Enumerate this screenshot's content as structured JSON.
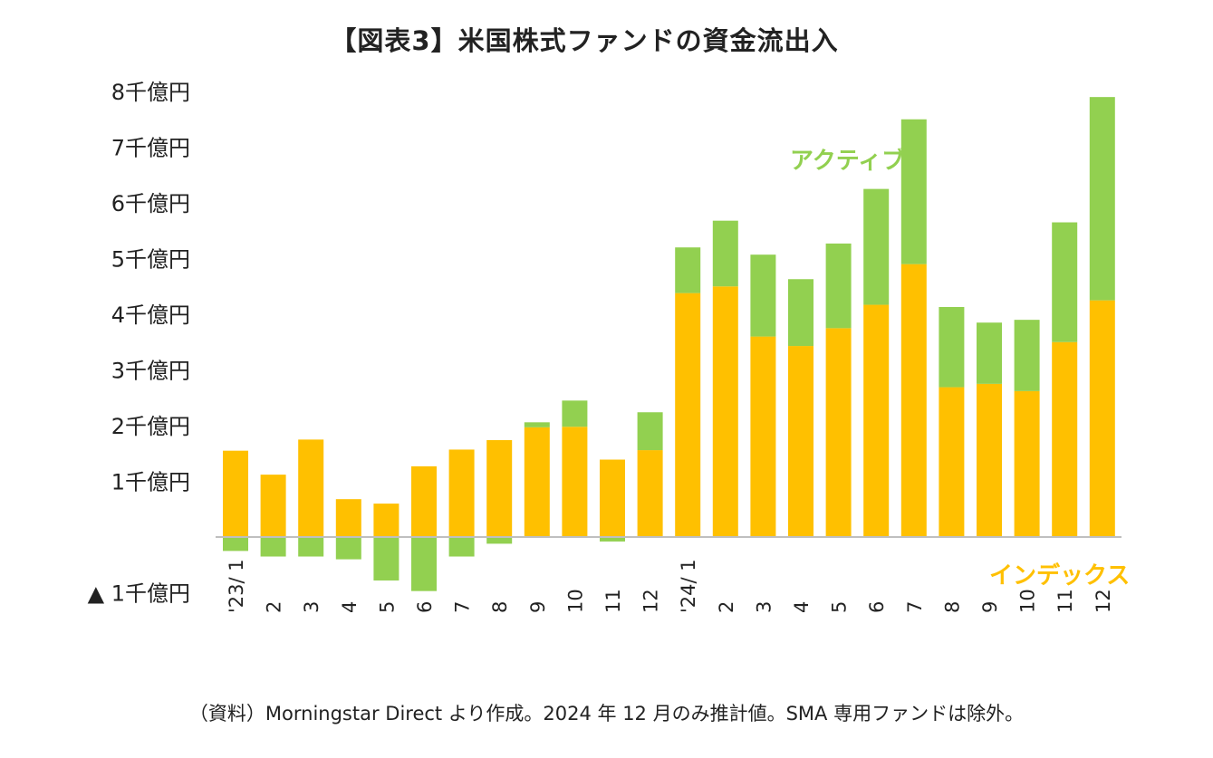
{
  "page": {
    "title": "【図表3】米国株式ファンドの資金流出入"
  },
  "source": "（資料）Morningstar Direct より作成。2024 年 12 月のみ推計値。SMA 専用ファンドは除外。",
  "colors": {
    "index": "#FFC000",
    "active": "#92D050",
    "axis": "#bfbfbf",
    "text": "#222222"
  },
  "chart_data": {
    "type": "bar",
    "stacked": true,
    "title": "【図表3】米国株式ファンドの資金流出入",
    "unit": "千億円",
    "ylim": [
      -1,
      8
    ],
    "y_ticks": [
      {
        "value": 8,
        "label": "8千億円"
      },
      {
        "value": 7,
        "label": "7千億円"
      },
      {
        "value": 6,
        "label": "6千億円"
      },
      {
        "value": 5,
        "label": "5千億円"
      },
      {
        "value": 4,
        "label": "4千億円"
      },
      {
        "value": 3,
        "label": "3千億円"
      },
      {
        "value": 2,
        "label": "2千億円"
      },
      {
        "value": 1,
        "label": "1千億円"
      },
      {
        "value": -1,
        "label": "▲ 1千億円"
      }
    ],
    "categories": [
      "'23/ 1",
      "2",
      "3",
      "4",
      "5",
      "6",
      "7",
      "8",
      "9",
      "10",
      "11",
      "12",
      "'24/ 1",
      "2",
      "3",
      "4",
      "5",
      "6",
      "7",
      "8",
      "9",
      "10",
      "11",
      "12"
    ],
    "series": [
      {
        "name": "インデックス",
        "values": [
          1.55,
          1.12,
          1.75,
          0.68,
          0.6,
          1.27,
          1.57,
          1.74,
          1.97,
          1.98,
          1.39,
          1.56,
          4.38,
          4.5,
          3.6,
          3.43,
          3.75,
          4.17,
          4.9,
          2.69,
          2.75,
          2.62,
          3.5,
          4.25
        ]
      },
      {
        "name": "アクティブ",
        "values": [
          -0.25,
          -0.35,
          -0.35,
          -0.4,
          -0.78,
          -0.97,
          -0.35,
          -0.12,
          0.09,
          0.47,
          -0.08,
          0.68,
          0.82,
          1.18,
          1.47,
          1.2,
          1.52,
          2.08,
          2.6,
          1.44,
          1.1,
          1.28,
          2.15,
          3.65
        ]
      }
    ]
  }
}
